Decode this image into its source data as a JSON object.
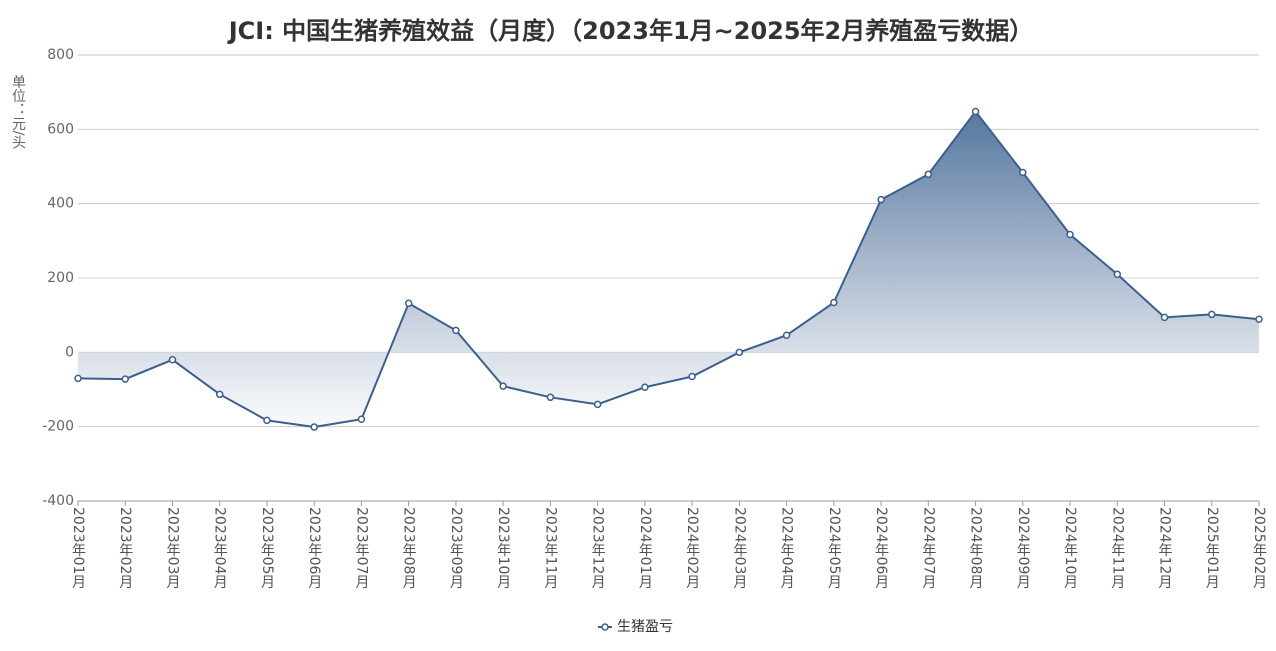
{
  "chart_data": {
    "type": "line",
    "title": "JCI: 中国生猪养殖效益（月度）（2023年1月~2025年2月养殖盈亏数据）",
    "y_label": "单位：元/头",
    "categories": [
      "2023年01月",
      "2023年02月",
      "2023年03月",
      "2023年04月",
      "2023年05月",
      "2023年06月",
      "2023年07月",
      "2023年08月",
      "2023年09月",
      "2023年10月",
      "2023年11月",
      "2023年12月",
      "2024年01月",
      "2024年02月",
      "2024年03月",
      "2024年04月",
      "2024年05月",
      "2024年06月",
      "2024年07月",
      "2024年08月",
      "2024年09月",
      "2024年10月",
      "2024年11月",
      "2024年12月",
      "2025年01月",
      "2025年02月"
    ],
    "series": [
      {
        "name": "生猪盈亏",
        "color": "#3c5f8c",
        "values": [
          -70,
          -72,
          -20,
          -113,
          -183,
          -201,
          -180,
          132,
          59,
          -91,
          -121,
          -140,
          -94,
          -65,
          0,
          46,
          134,
          411,
          479,
          648,
          484,
          317,
          210,
          94,
          102,
          89
        ]
      }
    ],
    "ylim": [
      -400,
      800
    ],
    "yticks": [
      -400,
      -200,
      0,
      200,
      400,
      600,
      800
    ],
    "grid": true
  }
}
